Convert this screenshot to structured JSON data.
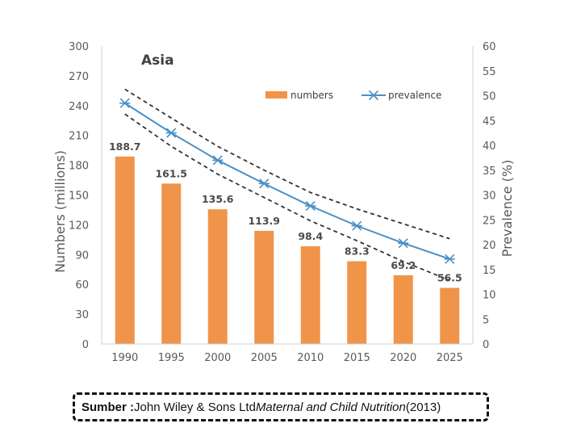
{
  "chart_data": {
    "type": "bar",
    "title": "Asia",
    "categories": [
      "1990",
      "1995",
      "2000",
      "2005",
      "2010",
      "2015",
      "2020",
      "2025"
    ],
    "series": [
      {
        "name": "numbers",
        "type": "bar",
        "axis": "left",
        "color": "#f0944a",
        "values": [
          188.7,
          161.5,
          135.6,
          113.9,
          98.4,
          83.3,
          69.2,
          56.5
        ],
        "labels": [
          "188.7",
          "161.5",
          "135.6",
          "113.9",
          "98.4",
          "83.3",
          "69.2",
          "56.5"
        ]
      },
      {
        "name": "prevalence",
        "type": "line",
        "axis": "right",
        "color": "#4a90c6",
        "values": [
          48.5,
          42.5,
          37.0,
          32.3,
          27.8,
          23.8,
          20.3,
          17.1
        ]
      }
    ],
    "confidence_band": {
      "upper": [
        51.3,
        45.5,
        39.8,
        35.0,
        30.5,
        27.2,
        24.2,
        21.2
      ],
      "lower": [
        46.3,
        39.8,
        34.2,
        29.5,
        24.8,
        20.8,
        16.6,
        12.8
      ]
    },
    "ylabel": "Numbers (millions)",
    "ylabel_right": "Prevalence (%)",
    "ylim": [
      0,
      300
    ],
    "yticks": [
      "0",
      "30",
      "60",
      "90",
      "120",
      "150",
      "180",
      "210",
      "240",
      "270",
      "300"
    ],
    "ylim_right": [
      0,
      60
    ],
    "yticks_right": [
      "0",
      "5",
      "10",
      "15",
      "20",
      "25",
      "30",
      "35",
      "40",
      "45",
      "50",
      "55",
      "60"
    ],
    "legend": "top-right",
    "grid": false
  },
  "source": {
    "prefix": "Sumber : ",
    "publisher": "John Wiley & Sons Ltd ",
    "journal": "Maternal and Child Nutrition",
    "year": " (2013)"
  }
}
